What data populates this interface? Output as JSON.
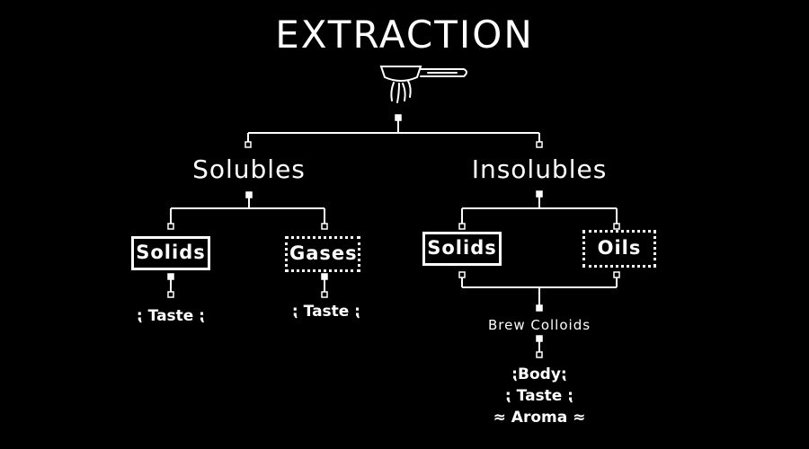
{
  "title": "EXTRACTION",
  "icon": "portafilter-icon",
  "branches": {
    "solubles": {
      "label": "Solubles",
      "solids": {
        "label": "Solids",
        "property": "Taste"
      },
      "gases": {
        "label": "Gases",
        "property": "Taste"
      }
    },
    "insolubles": {
      "label": "Insolubles",
      "solids": {
        "label": "Solids"
      },
      "oils": {
        "label": "Oils"
      },
      "merge": {
        "label": "Brew Colloids",
        "properties": [
          "Body",
          "Taste",
          "Aroma"
        ]
      }
    }
  },
  "colors": {
    "background": "#000000",
    "ink": "#ffffff"
  }
}
